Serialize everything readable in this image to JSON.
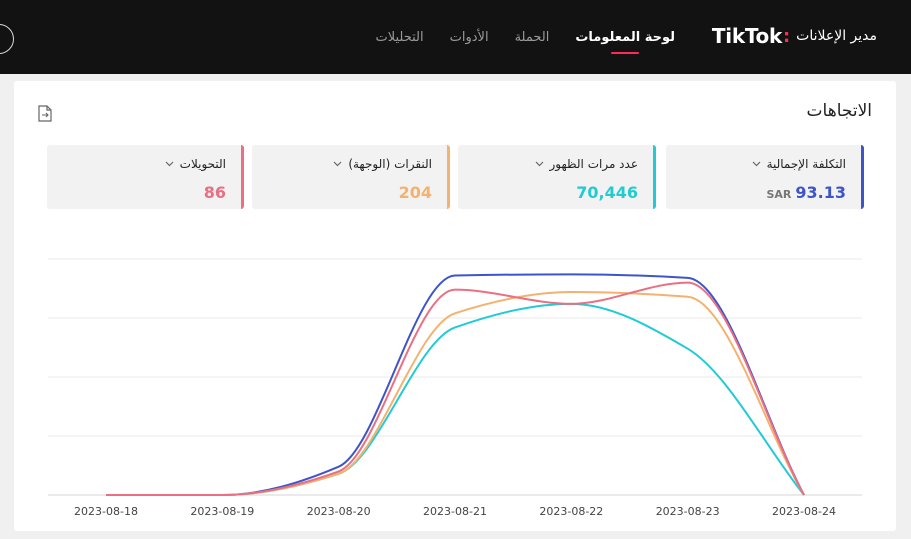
{
  "header": {
    "brand_name": "TikTok",
    "brand_colon": ":",
    "brand_suffix": "مدير الإعلانات",
    "nav": [
      {
        "label": "لوحة المعلومات",
        "active": true
      },
      {
        "label": "الحملة",
        "active": false
      },
      {
        "label": "الأدوات",
        "active": false
      },
      {
        "label": "التحليلات",
        "active": false
      }
    ]
  },
  "section": {
    "title": "الاتجاهات",
    "export_icon": "export-file-icon"
  },
  "metrics": [
    {
      "label": "التكلفة الإجمالية",
      "value": "93.13",
      "unit": "SAR",
      "color": "#3d55c9"
    },
    {
      "label": "عدد مرات الظهور",
      "value": "70,446",
      "unit": "",
      "color": "#22cbd3"
    },
    {
      "label": "النقرات (الوجهة)",
      "value": "204",
      "unit": "",
      "color": "#f3b26f"
    },
    {
      "label": "التحويلات",
      "value": "86",
      "unit": "",
      "color": "#ea6f82"
    }
  ],
  "chart_data": {
    "type": "line",
    "x": [
      "2023-08-18",
      "2023-08-19",
      "2023-08-20",
      "2023-08-21",
      "2023-08-22",
      "2023-08-23",
      "2023-08-24"
    ],
    "ylim": [
      0,
      1
    ],
    "grid": true,
    "series": [
      {
        "color": "#3d55c9",
        "values": [
          0,
          0,
          0.12,
          0.93,
          0.935,
          0.92,
          0
        ]
      },
      {
        "color": "#22cbd3",
        "values": [
          0,
          0,
          0.09,
          0.71,
          0.81,
          0.62,
          0
        ]
      },
      {
        "color": "#f3b26f",
        "values": [
          0,
          0,
          0.09,
          0.77,
          0.86,
          0.84,
          0
        ]
      },
      {
        "color": "#ea6f82",
        "values": [
          0,
          0,
          0.1,
          0.87,
          0.81,
          0.9,
          0
        ]
      }
    ]
  }
}
